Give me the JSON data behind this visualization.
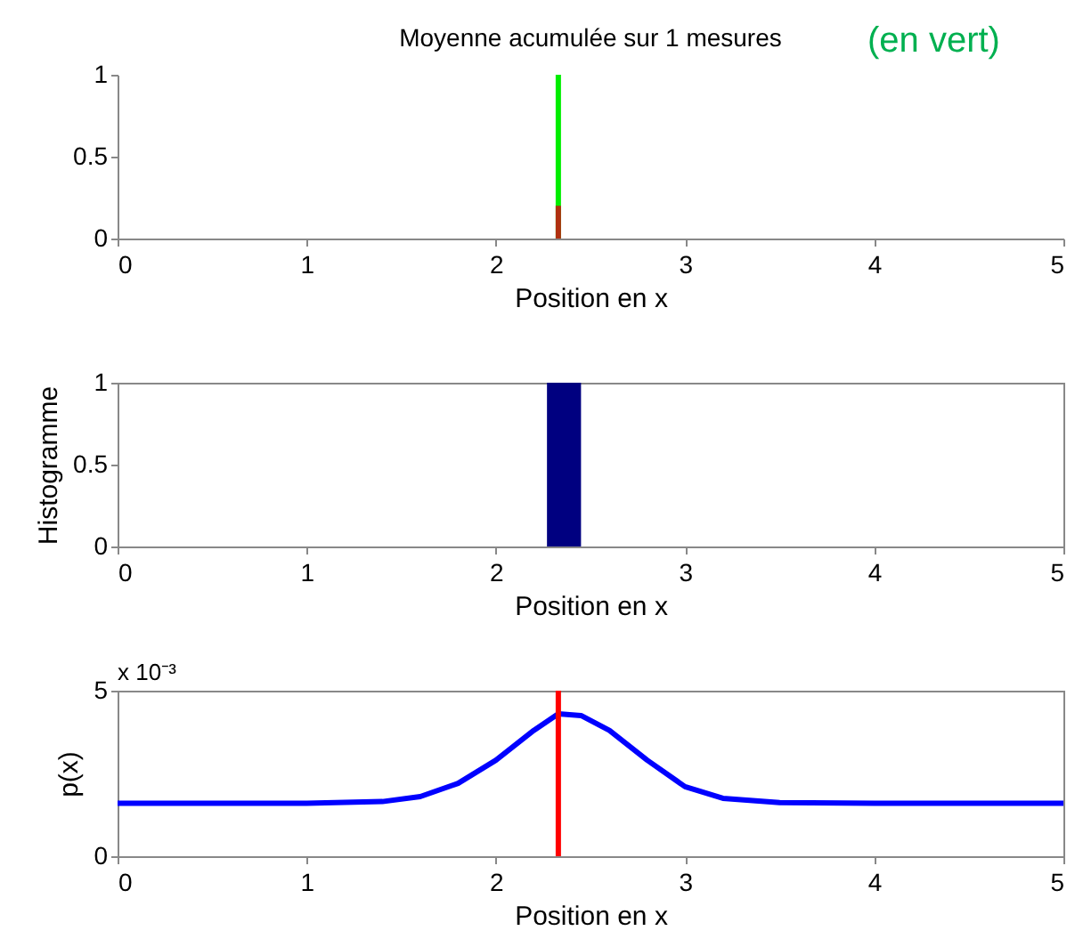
{
  "chart_data": [
    {
      "type": "line",
      "title": "Moyenne acumulée sur 1 mesures",
      "annotations": [
        "(en vert)"
      ],
      "xlabel": "Position en x",
      "xlim": [
        0,
        5
      ],
      "xticks": [
        0,
        1,
        2,
        3,
        4,
        5
      ],
      "ylim": [
        0,
        1
      ],
      "yticks": [
        0,
        0.5,
        1
      ],
      "grid": false,
      "series": [
        {
          "color": "#00ee00",
          "x": [
            2.33,
            2.33
          ],
          "values": [
            0,
            1
          ]
        },
        {
          "color": "#b03010",
          "x": [
            2.33,
            2.33
          ],
          "values": [
            0,
            0.2
          ]
        }
      ]
    },
    {
      "type": "histogram",
      "xlabel": "Position en x",
      "ylabel": "Histogramme",
      "xlim": [
        0,
        5
      ],
      "xticks": [
        0,
        1,
        2,
        3,
        4,
        5
      ],
      "ylim": [
        0,
        1
      ],
      "yticks": [
        0,
        0.5,
        1
      ],
      "grid": false,
      "bins": [
        2.27,
        2.45
      ],
      "values": [
        1
      ],
      "color": "#000080"
    },
    {
      "type": "line",
      "xlabel": "Position en x",
      "ylabel": "p(x)",
      "annotations": [
        "x 10⁻³"
      ],
      "xlim": [
        0,
        5
      ],
      "xticks": [
        0,
        1,
        2,
        3,
        4,
        5
      ],
      "ylim": [
        0,
        5
      ],
      "yticks": [
        0,
        5
      ],
      "grid": false,
      "ref_lines": [
        {
          "axis": "x",
          "value": 2.33,
          "color": "#ff0000"
        }
      ],
      "series": [
        {
          "color": "#0000ff",
          "x": [
            0,
            1,
            1.4,
            1.6,
            1.8,
            2.0,
            2.2,
            2.33,
            2.45,
            2.6,
            2.8,
            3.0,
            3.2,
            3.5,
            4,
            5
          ],
          "values": [
            1.6,
            1.6,
            1.65,
            1.8,
            2.2,
            2.9,
            3.8,
            4.3,
            4.25,
            3.8,
            2.9,
            2.1,
            1.75,
            1.62,
            1.6,
            1.6
          ]
        }
      ]
    }
  ]
}
